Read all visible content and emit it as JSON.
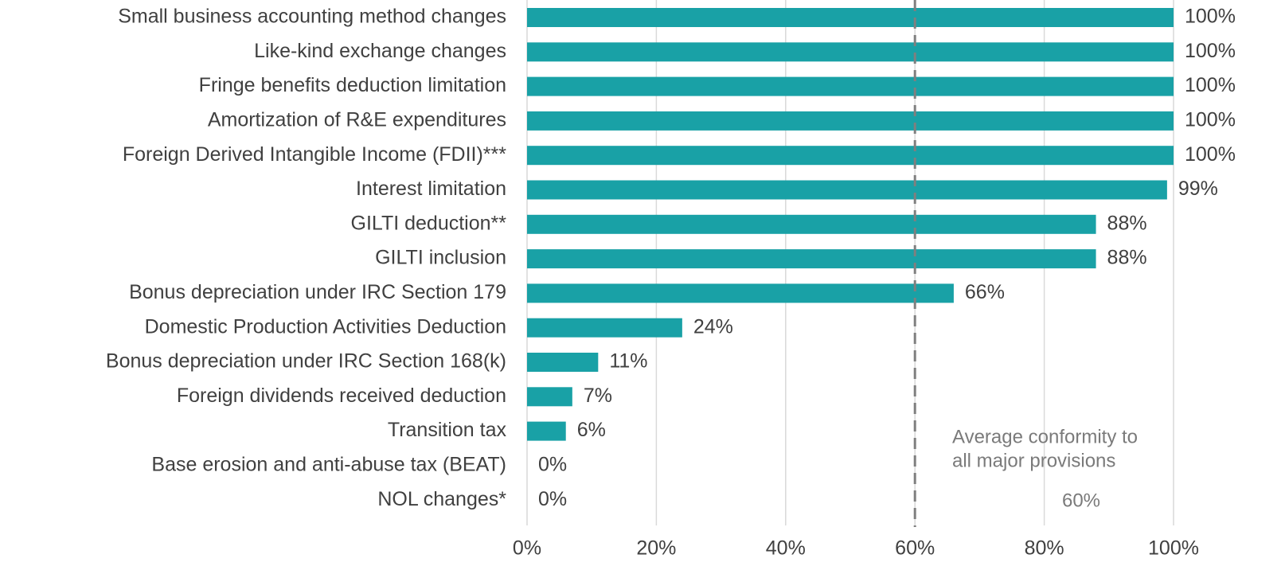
{
  "chart_data": {
    "type": "bar",
    "orientation": "horizontal",
    "categories": [
      "Small business accounting method changes",
      "Like-kind exchange changes",
      "Fringe benefits deduction limitation",
      "Amortization of R&E expenditures",
      "Foreign Derived Intangible Income (FDII)***",
      "Interest limitation",
      "GILTI deduction**",
      "GILTI inclusion",
      "Bonus depreciation under IRC Section 179",
      "Domestic Production Activities Deduction",
      "Bonus depreciation under IRC Section 168(k)",
      "Foreign dividends received deduction",
      "Transition tax",
      "Base erosion and anti-abuse tax (BEAT)",
      "NOL changes*"
    ],
    "values": [
      100,
      100,
      100,
      100,
      100,
      99,
      88,
      88,
      66,
      24,
      11,
      7,
      6,
      0,
      0
    ],
    "value_labels": [
      "100%",
      "100%",
      "100%",
      "100%",
      "100%",
      "99%",
      "88%",
      "88%",
      "66%",
      "24%",
      "11%",
      "7%",
      "6%",
      "0%",
      "0%"
    ],
    "color": "#19a1a6",
    "xlim": [
      0,
      100
    ],
    "xticks": [
      {
        "value": 0,
        "label": "0%"
      },
      {
        "value": 20,
        "label": "20%"
      },
      {
        "value": 40,
        "label": "40%"
      },
      {
        "value": 60,
        "label": "60%"
      },
      {
        "value": 80,
        "label": "80%"
      },
      {
        "value": 100,
        "label": "100%"
      }
    ],
    "grid": true,
    "average": {
      "value": 60,
      "label": "60%"
    },
    "average_annotation": [
      "Average conformity to",
      "all major provisions"
    ]
  }
}
